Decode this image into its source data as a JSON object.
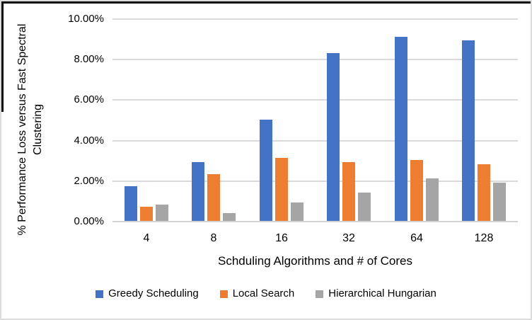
{
  "chart_data": {
    "type": "bar",
    "title": "",
    "categories": [
      "4",
      "8",
      "16",
      "32",
      "64",
      "128"
    ],
    "series": [
      {
        "name": "Greedy Scheduling",
        "color": "#4472C4",
        "values": [
          1.7,
          2.9,
          5.0,
          8.3,
          9.1,
          8.9
        ]
      },
      {
        "name": "Local Search",
        "color": "#ED7D31",
        "values": [
          0.7,
          2.3,
          3.1,
          2.9,
          3.0,
          2.8
        ]
      },
      {
        "name": "Hierarchical Hungarian",
        "color": "#A5A5A5",
        "values": [
          0.8,
          0.4,
          0.9,
          1.4,
          2.1,
          1.9
        ]
      }
    ],
    "xlabel": "Schduling Algorithms and # of Cores",
    "ylabel": "% Performance Loss versus Fast Spectral Clustering",
    "ylabel_lines": [
      "% Performance Loss versus Fast Spectral",
      "Clustering"
    ],
    "ylim": [
      0,
      10
    ],
    "ytick_step": 2,
    "ytick_labels": [
      "0.00%",
      "2.00%",
      "4.00%",
      "6.00%",
      "8.00%",
      "10.00%"
    ],
    "grid": true,
    "legend_position": "bottom"
  },
  "colors": {
    "gridline": "#D9D9D9",
    "axisline": "#D2D2D2",
    "text": "#000000"
  }
}
